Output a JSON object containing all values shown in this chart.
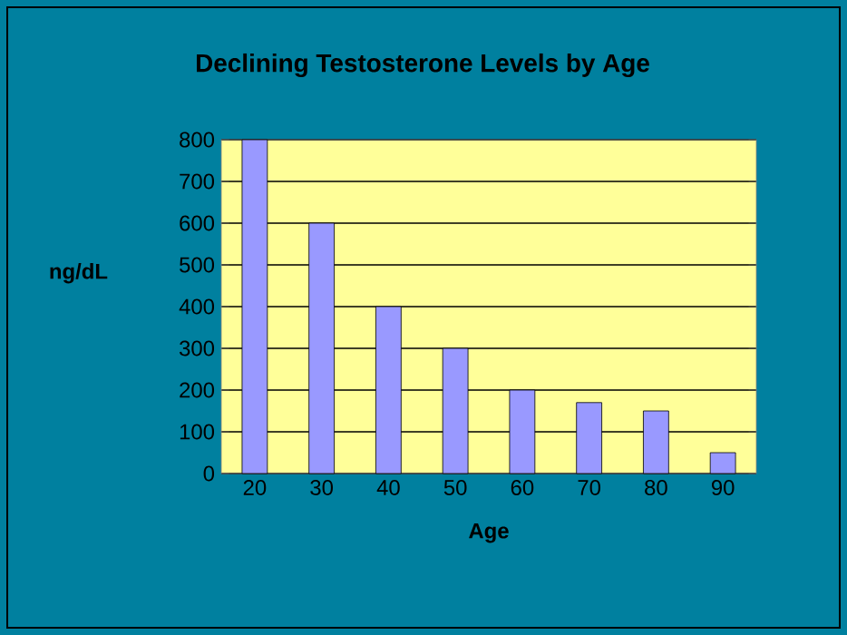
{
  "chart_data": {
    "type": "bar",
    "title": "Declining Testosterone Levels by Age",
    "xlabel": "Age",
    "ylabel": "ng/dL",
    "categories": [
      "20",
      "30",
      "40",
      "50",
      "60",
      "70",
      "80",
      "90"
    ],
    "values": [
      800,
      600,
      400,
      300,
      200,
      170,
      150,
      50
    ],
    "color": "#9999ff",
    "ylim": [
      0,
      800
    ],
    "yticks": [
      0,
      100,
      200,
      300,
      400,
      500,
      600,
      700,
      800
    ],
    "grid": "y"
  }
}
